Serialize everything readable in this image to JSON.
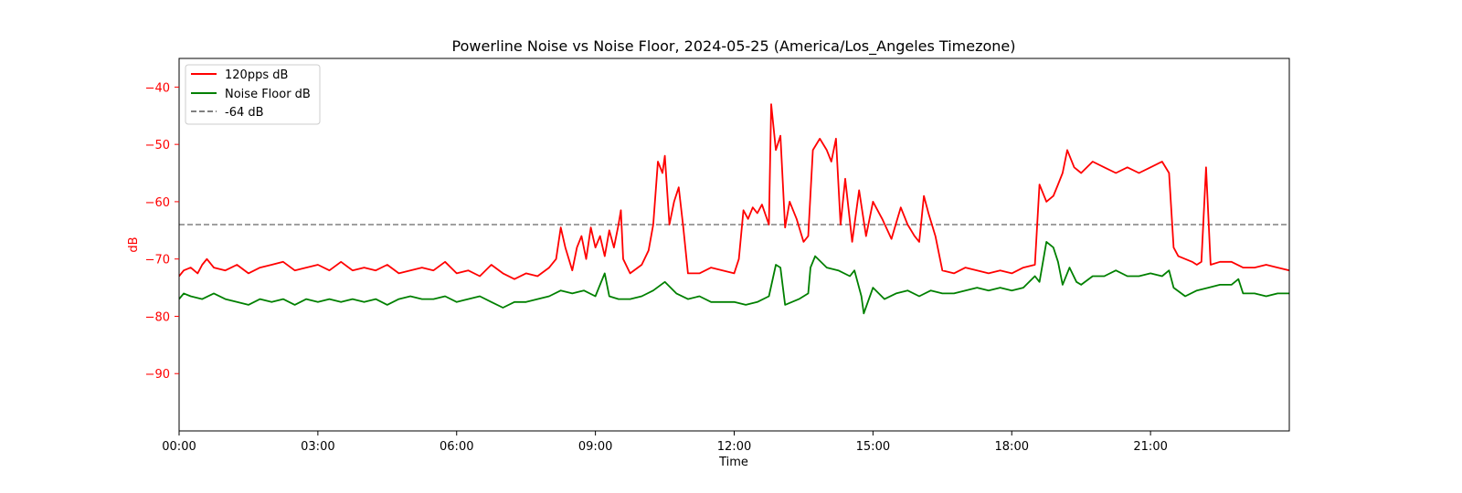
{
  "chart_data": {
    "type": "line",
    "title": "Powerline Noise vs Noise Floor, 2024-05-25 (America/Los_Angeles Timezone)",
    "xlabel": "Time",
    "ylabel": "dB",
    "xlim": [
      0,
      24
    ],
    "ylim": [
      -100,
      -35
    ],
    "x_ticks": [
      0,
      3,
      6,
      9,
      12,
      15,
      18,
      21
    ],
    "x_tick_labels": [
      "00:00",
      "03:00",
      "06:00",
      "09:00",
      "12:00",
      "15:00",
      "18:00",
      "21:00"
    ],
    "y_ticks": [
      -90,
      -80,
      -70,
      -60,
      -50,
      -40
    ],
    "y_tick_labels": [
      "−90",
      "−80",
      "−70",
      "−60",
      "−50",
      "−40"
    ],
    "ylabel_color": "#ff0000",
    "grid": false,
    "legend_position": "top-left",
    "reference_line": {
      "name": "-64 dB",
      "value": -64,
      "color": "#808080",
      "style": "dashed"
    },
    "series": [
      {
        "name": "120pps dB",
        "color": "#ff0000",
        "points": [
          [
            0.0,
            -73
          ],
          [
            0.1,
            -72
          ],
          [
            0.25,
            -71.5
          ],
          [
            0.4,
            -72.5
          ],
          [
            0.5,
            -71
          ],
          [
            0.6,
            -70
          ],
          [
            0.75,
            -71.5
          ],
          [
            1.0,
            -72
          ],
          [
            1.25,
            -71
          ],
          [
            1.5,
            -72.5
          ],
          [
            1.75,
            -71.5
          ],
          [
            2.0,
            -71
          ],
          [
            2.25,
            -70.5
          ],
          [
            2.5,
            -72
          ],
          [
            2.75,
            -71.5
          ],
          [
            3.0,
            -71
          ],
          [
            3.25,
            -72
          ],
          [
            3.5,
            -70.5
          ],
          [
            3.75,
            -72
          ],
          [
            4.0,
            -71.5
          ],
          [
            4.25,
            -72
          ],
          [
            4.5,
            -71
          ],
          [
            4.75,
            -72.5
          ],
          [
            5.0,
            -72
          ],
          [
            5.25,
            -71.5
          ],
          [
            5.5,
            -72
          ],
          [
            5.75,
            -70.5
          ],
          [
            6.0,
            -72.5
          ],
          [
            6.25,
            -72
          ],
          [
            6.5,
            -73
          ],
          [
            6.75,
            -71
          ],
          [
            7.0,
            -72.5
          ],
          [
            7.25,
            -73.5
          ],
          [
            7.5,
            -72.5
          ],
          [
            7.75,
            -73
          ],
          [
            8.0,
            -71.5
          ],
          [
            8.15,
            -70
          ],
          [
            8.25,
            -64.5
          ],
          [
            8.35,
            -68
          ],
          [
            8.5,
            -72
          ],
          [
            8.6,
            -68
          ],
          [
            8.7,
            -66
          ],
          [
            8.8,
            -70
          ],
          [
            8.9,
            -64.5
          ],
          [
            9.0,
            -68
          ],
          [
            9.1,
            -66
          ],
          [
            9.2,
            -69.5
          ],
          [
            9.3,
            -65
          ],
          [
            9.4,
            -68
          ],
          [
            9.5,
            -64
          ],
          [
            9.55,
            -61.5
          ],
          [
            9.6,
            -70
          ],
          [
            9.75,
            -72.5
          ],
          [
            10.0,
            -71
          ],
          [
            10.15,
            -68.5
          ],
          [
            10.25,
            -64
          ],
          [
            10.35,
            -53
          ],
          [
            10.45,
            -55
          ],
          [
            10.5,
            -52
          ],
          [
            10.55,
            -58
          ],
          [
            10.6,
            -64
          ],
          [
            10.7,
            -60
          ],
          [
            10.8,
            -57.5
          ],
          [
            10.9,
            -64.5
          ],
          [
            11.0,
            -72.5
          ],
          [
            11.25,
            -72.5
          ],
          [
            11.5,
            -71.5
          ],
          [
            11.75,
            -72
          ],
          [
            12.0,
            -72.5
          ],
          [
            12.1,
            -70
          ],
          [
            12.2,
            -61.5
          ],
          [
            12.3,
            -63
          ],
          [
            12.4,
            -61
          ],
          [
            12.5,
            -62
          ],
          [
            12.6,
            -60.5
          ],
          [
            12.75,
            -64
          ],
          [
            12.8,
            -43
          ],
          [
            12.9,
            -51
          ],
          [
            13.0,
            -48.5
          ],
          [
            13.1,
            -64.5
          ],
          [
            13.2,
            -60
          ],
          [
            13.35,
            -63
          ],
          [
            13.5,
            -67
          ],
          [
            13.6,
            -66
          ],
          [
            13.7,
            -51
          ],
          [
            13.85,
            -49
          ],
          [
            14.0,
            -51
          ],
          [
            14.1,
            -53
          ],
          [
            14.2,
            -49
          ],
          [
            14.3,
            -64
          ],
          [
            14.4,
            -56
          ],
          [
            14.55,
            -67
          ],
          [
            14.7,
            -58
          ],
          [
            14.85,
            -66
          ],
          [
            15.0,
            -60
          ],
          [
            15.2,
            -63
          ],
          [
            15.4,
            -66.5
          ],
          [
            15.6,
            -61
          ],
          [
            15.75,
            -64
          ],
          [
            15.9,
            -66
          ],
          [
            16.0,
            -67
          ],
          [
            16.1,
            -59
          ],
          [
            16.2,
            -62
          ],
          [
            16.35,
            -66
          ],
          [
            16.5,
            -72
          ],
          [
            16.75,
            -72.5
          ],
          [
            17.0,
            -71.5
          ],
          [
            17.25,
            -72
          ],
          [
            17.5,
            -72.5
          ],
          [
            17.75,
            -72
          ],
          [
            18.0,
            -72.5
          ],
          [
            18.25,
            -71.5
          ],
          [
            18.5,
            -71
          ],
          [
            18.6,
            -57
          ],
          [
            18.75,
            -60
          ],
          [
            18.9,
            -59
          ],
          [
            19.0,
            -57
          ],
          [
            19.1,
            -55
          ],
          [
            19.2,
            -51
          ],
          [
            19.35,
            -54
          ],
          [
            19.5,
            -55
          ],
          [
            19.75,
            -53
          ],
          [
            20.0,
            -54
          ],
          [
            20.25,
            -55
          ],
          [
            20.5,
            -54
          ],
          [
            20.75,
            -55
          ],
          [
            21.0,
            -54
          ],
          [
            21.25,
            -53
          ],
          [
            21.4,
            -55
          ],
          [
            21.5,
            -68
          ],
          [
            21.6,
            -69.5
          ],
          [
            21.75,
            -70
          ],
          [
            21.9,
            -70.5
          ],
          [
            22.0,
            -71
          ],
          [
            22.1,
            -70.5
          ],
          [
            22.2,
            -54
          ],
          [
            22.3,
            -71
          ],
          [
            22.5,
            -70.5
          ],
          [
            22.75,
            -70.5
          ],
          [
            23.0,
            -71.5
          ],
          [
            23.25,
            -71.5
          ],
          [
            23.5,
            -71
          ],
          [
            23.75,
            -71.5
          ],
          [
            24.0,
            -72
          ]
        ]
      },
      {
        "name": "Noise Floor dB",
        "color": "#008000",
        "points": [
          [
            0.0,
            -77
          ],
          [
            0.1,
            -76
          ],
          [
            0.25,
            -76.5
          ],
          [
            0.5,
            -77
          ],
          [
            0.75,
            -76
          ],
          [
            1.0,
            -77
          ],
          [
            1.25,
            -77.5
          ],
          [
            1.5,
            -78
          ],
          [
            1.75,
            -77
          ],
          [
            2.0,
            -77.5
          ],
          [
            2.25,
            -77
          ],
          [
            2.5,
            -78
          ],
          [
            2.75,
            -77
          ],
          [
            3.0,
            -77.5
          ],
          [
            3.25,
            -77
          ],
          [
            3.5,
            -77.5
          ],
          [
            3.75,
            -77
          ],
          [
            4.0,
            -77.5
          ],
          [
            4.25,
            -77
          ],
          [
            4.5,
            -78
          ],
          [
            4.75,
            -77
          ],
          [
            5.0,
            -76.5
          ],
          [
            5.25,
            -77
          ],
          [
            5.5,
            -77
          ],
          [
            5.75,
            -76.5
          ],
          [
            6.0,
            -77.5
          ],
          [
            6.25,
            -77
          ],
          [
            6.5,
            -76.5
          ],
          [
            6.75,
            -77.5
          ],
          [
            7.0,
            -78.5
          ],
          [
            7.25,
            -77.5
          ],
          [
            7.5,
            -77.5
          ],
          [
            7.75,
            -77
          ],
          [
            8.0,
            -76.5
          ],
          [
            8.25,
            -75.5
          ],
          [
            8.5,
            -76
          ],
          [
            8.75,
            -75.5
          ],
          [
            9.0,
            -76.5
          ],
          [
            9.1,
            -74.5
          ],
          [
            9.2,
            -72.5
          ],
          [
            9.3,
            -76.5
          ],
          [
            9.5,
            -77
          ],
          [
            9.75,
            -77
          ],
          [
            10.0,
            -76.5
          ],
          [
            10.25,
            -75.5
          ],
          [
            10.5,
            -74
          ],
          [
            10.75,
            -76
          ],
          [
            11.0,
            -77
          ],
          [
            11.25,
            -76.5
          ],
          [
            11.5,
            -77.5
          ],
          [
            11.75,
            -77.5
          ],
          [
            12.0,
            -77.5
          ],
          [
            12.25,
            -78
          ],
          [
            12.5,
            -77.5
          ],
          [
            12.75,
            -76.5
          ],
          [
            12.9,
            -71
          ],
          [
            13.0,
            -71.5
          ],
          [
            13.1,
            -78
          ],
          [
            13.4,
            -77
          ],
          [
            13.6,
            -76
          ],
          [
            13.65,
            -71.5
          ],
          [
            13.75,
            -69.5
          ],
          [
            14.0,
            -71.5
          ],
          [
            14.25,
            -72
          ],
          [
            14.5,
            -73
          ],
          [
            14.6,
            -72
          ],
          [
            14.75,
            -76.5
          ],
          [
            14.8,
            -79.5
          ],
          [
            15.0,
            -75
          ],
          [
            15.25,
            -77
          ],
          [
            15.5,
            -76
          ],
          [
            15.75,
            -75.5
          ],
          [
            16.0,
            -76.5
          ],
          [
            16.25,
            -75.5
          ],
          [
            16.5,
            -76
          ],
          [
            16.75,
            -76
          ],
          [
            17.0,
            -75.5
          ],
          [
            17.25,
            -75
          ],
          [
            17.5,
            -75.5
          ],
          [
            17.75,
            -75
          ],
          [
            18.0,
            -75.5
          ],
          [
            18.25,
            -75
          ],
          [
            18.5,
            -73
          ],
          [
            18.6,
            -74
          ],
          [
            18.75,
            -67
          ],
          [
            18.9,
            -68
          ],
          [
            19.0,
            -70.5
          ],
          [
            19.1,
            -74.5
          ],
          [
            19.25,
            -71.5
          ],
          [
            19.4,
            -74
          ],
          [
            19.5,
            -74.5
          ],
          [
            19.75,
            -73
          ],
          [
            20.0,
            -73
          ],
          [
            20.25,
            -72
          ],
          [
            20.5,
            -73
          ],
          [
            20.75,
            -73
          ],
          [
            21.0,
            -72.5
          ],
          [
            21.25,
            -73
          ],
          [
            21.4,
            -72
          ],
          [
            21.5,
            -75
          ],
          [
            21.75,
            -76.5
          ],
          [
            22.0,
            -75.5
          ],
          [
            22.25,
            -75
          ],
          [
            22.5,
            -74.5
          ],
          [
            22.75,
            -74.5
          ],
          [
            22.9,
            -73.5
          ],
          [
            23.0,
            -76
          ],
          [
            23.25,
            -76
          ],
          [
            23.5,
            -76.5
          ],
          [
            23.75,
            -76
          ],
          [
            24.0,
            -76
          ]
        ]
      }
    ]
  }
}
